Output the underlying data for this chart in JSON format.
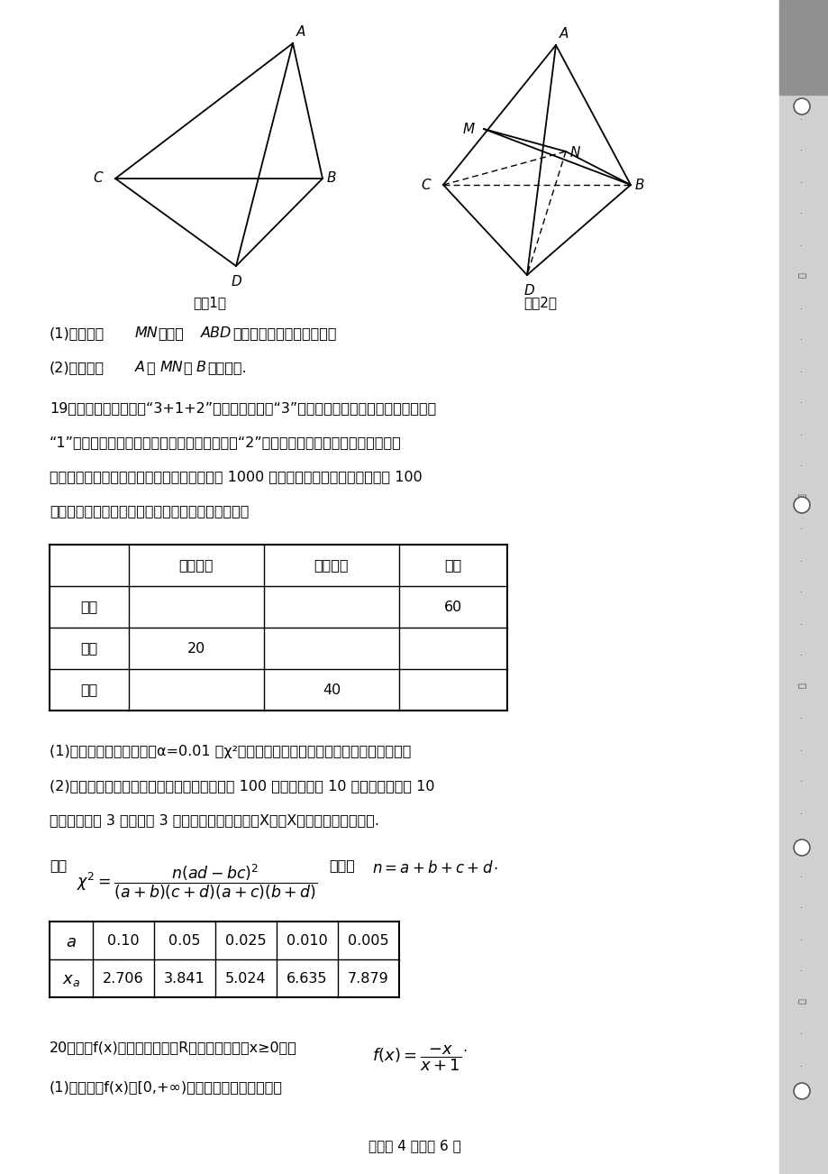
{
  "bg_color": "#ffffff",
  "page_width": 9.2,
  "page_height": 13.02,
  "fig1_caption": "图（1）",
  "fig2_caption": "图（2）",
  "table1_headers": [
    "",
    "选考物理",
    "选考历史",
    "共计"
  ],
  "table1_rows": [
    [
      "男生",
      "",
      "",
      "60"
    ],
    [
      "女生",
      "20",
      "",
      ""
    ],
    [
      "共计",
      "",
      "40",
      ""
    ]
  ],
  "table2_headers": [
    "a",
    "0.10",
    "0.05",
    "0.025",
    "0.010",
    "0.005"
  ],
  "table2_rows": [
    [
      "xa",
      "2.706",
      "3.841",
      "5.024",
      "6.635",
      "7.879"
    ]
  ],
  "footer": "试卷第 4 页，共 6 页"
}
